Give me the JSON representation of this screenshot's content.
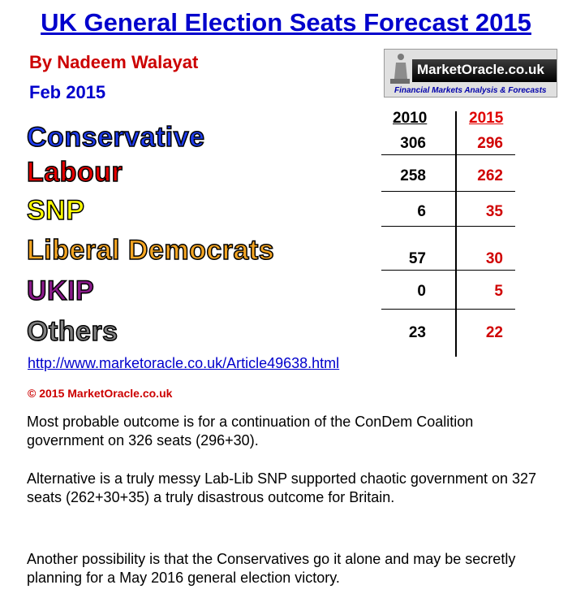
{
  "header": {
    "title": "UK General Election Seats Forecast 2015",
    "author": "By Nadeem Walayat",
    "date": "Feb 2015"
  },
  "logo": {
    "name": "MarketOracle.co.uk",
    "tagline": "Financial Markets Analysis & Forecasts"
  },
  "chart_data": {
    "type": "table",
    "title": "UK General Election Seats Forecast 2015",
    "columns": [
      "2010",
      "2015"
    ],
    "rows": [
      {
        "party": "Conservative",
        "v2010": "306",
        "v2015": "296",
        "color": "#1e3cf0"
      },
      {
        "party": "Labour",
        "v2010": "258",
        "v2015": "262",
        "color": "#e60000"
      },
      {
        "party": "SNP",
        "v2010": "6",
        "v2015": "35",
        "color": "#ffff00"
      },
      {
        "party": "Liberal Democrats",
        "v2010": "57",
        "v2015": "30",
        "color": "#f5a623"
      },
      {
        "party": "UKIP",
        "v2010": "0",
        "v2015": "5",
        "color": "#8b1a8b"
      },
      {
        "party": "Others",
        "v2010": "23",
        "v2015": "22",
        "color": "#808080"
      }
    ]
  },
  "footer": {
    "link": "http://www.marketoracle.co.uk/Article49638.html",
    "copyright": "© 2015 MarketOracle.co.uk",
    "paragraphs": [
      "Most probable outcome is for a continuation of the ConDem Coalition government on 326 seats (296+30).",
      "Alternative is a truly messy Lab-Lib SNP supported chaotic government on 327 seats (262+30+35) a truly disastrous outcome for Britain.",
      "Another possibility is that the Conservatives go it alone and may be secretly planning for a May 2016 general election victory."
    ]
  }
}
